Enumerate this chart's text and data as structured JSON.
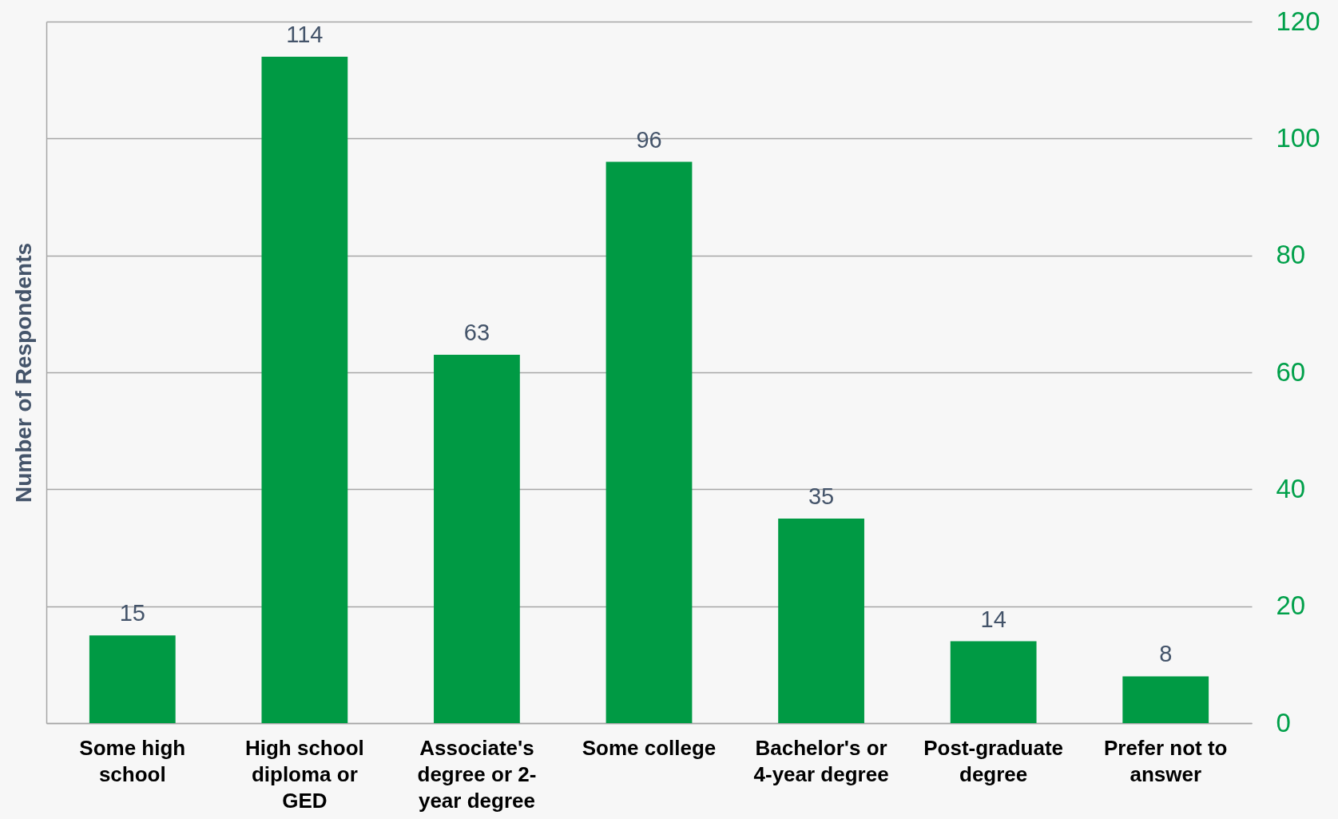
{
  "chart_data": {
    "type": "bar",
    "ylabel": "Number of Respondents",
    "categories": [
      "Some high school",
      "High school diploma or GED",
      "Associate's degree or 2-year degree",
      "Some college",
      "Bachelor's or 4-year degree",
      "Post-graduate degree",
      "Prefer not to answer"
    ],
    "values": [
      15,
      114,
      63,
      96,
      35,
      14,
      8
    ],
    "color": "#009a44",
    "ylim": [
      0,
      120
    ],
    "yticks": [
      0,
      20,
      40,
      60,
      80,
      100,
      120
    ],
    "grid": "y",
    "data_labels": true
  }
}
